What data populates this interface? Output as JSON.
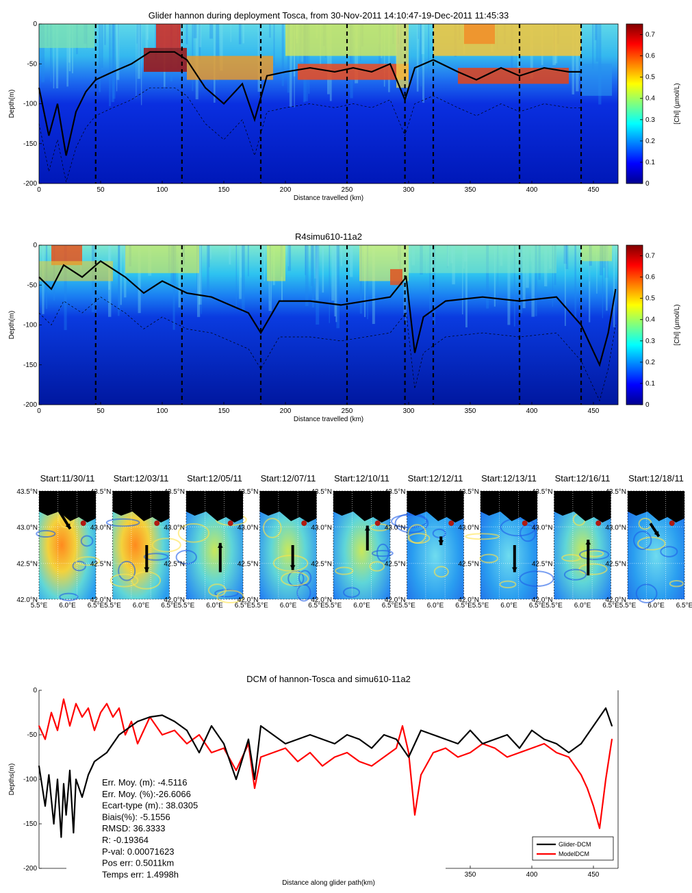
{
  "section_plot": {
    "type": "heatmap",
    "title": "Glider hannon during deployment Tosca, from 30-Nov-2011 14:10:47-19-Dec-2011 11:45:33",
    "xlabel": "Distance travelled (km)",
    "ylabel": "Depth(m)",
    "colorbar_label": "[Chl] (µmol/L)",
    "xlim": [
      0,
      470
    ],
    "ylim": [
      -200,
      0
    ],
    "x_ticks": [
      "0",
      "50",
      "100",
      "150",
      "200",
      "250",
      "300",
      "350",
      "400",
      "450"
    ],
    "y_ticks": [
      "0",
      "-50",
      "-100",
      "-150",
      "-200"
    ],
    "cb_ticks": [
      "0",
      "0.1",
      "0.2",
      "0.3",
      "0.4",
      "0.5",
      "0.6",
      "0.7"
    ]
  },
  "model_plot": {
    "type": "heatmap",
    "title": "R4simu610-11a2",
    "xlabel": "Distance travelled (km)",
    "ylabel": "Depth(m)",
    "colorbar_label": "[Chl] (µmol/L)",
    "x_ticks": [
      "0",
      "50",
      "100",
      "150",
      "200",
      "250",
      "300",
      "350",
      "400",
      "450"
    ],
    "y_ticks": [
      "0",
      "-50",
      "-100",
      "-150",
      "-200"
    ],
    "cb_ticks": [
      "0",
      "0.1",
      "0.2",
      "0.3",
      "0.4",
      "0.5",
      "0.6",
      "0.7"
    ]
  },
  "section_markers_km": [
    46,
    116,
    180,
    250,
    297,
    320,
    390,
    440
  ],
  "maps": {
    "titles": [
      "Start:11/30/11",
      "Start:12/03/11",
      "Start:12/05/11",
      "Start:12/07/11",
      "Start:12/10/11",
      "Start:12/12/11",
      "Start:12/13/11",
      "Start:12/16/11",
      "Start:12/18/11"
    ],
    "lat_ticks": [
      "43.5",
      "43.0",
      "42.5",
      "42.0"
    ],
    "lon_ticks": [
      "5.5",
      "6.0",
      "6.5"
    ],
    "lat_suffix": "N",
    "lon_suffix": "E"
  },
  "chart_data": {
    "type": "line",
    "title": "DCM of hannon-Tosca and simu610-11a2",
    "xlabel": "Distance along glider path(km)",
    "ylabel": "Depths(m)",
    "xlim": [
      0,
      470
    ],
    "ylim": [
      -200,
      0
    ],
    "x_ticks": [
      350,
      400,
      450
    ],
    "y_ticks": [
      0,
      -50,
      -100,
      -150,
      -200
    ],
    "series": [
      {
        "name": "Glider-DCM",
        "color": "#000000",
        "x": [
          0,
          5,
          8,
          12,
          15,
          18,
          20,
          22,
          25,
          28,
          30,
          35,
          40,
          45,
          50,
          55,
          60,
          65,
          70,
          75,
          80,
          90,
          100,
          110,
          120,
          130,
          140,
          150,
          160,
          170,
          175,
          180,
          190,
          200,
          210,
          220,
          230,
          240,
          250,
          260,
          270,
          280,
          290,
          300,
          310,
          320,
          330,
          340,
          350,
          360,
          370,
          380,
          390,
          400,
          410,
          420,
          430,
          440,
          450,
          460,
          465
        ],
        "y": [
          -85,
          -130,
          -95,
          -150,
          -100,
          -165,
          -105,
          -140,
          -90,
          -160,
          -100,
          -120,
          -95,
          -80,
          -75,
          -70,
          -60,
          -50,
          -45,
          -40,
          -35,
          -30,
          -28,
          -35,
          -45,
          -70,
          -40,
          -60,
          -100,
          -55,
          -100,
          -40,
          -50,
          -60,
          -55,
          -50,
          -55,
          -60,
          -50,
          -55,
          -65,
          -50,
          -55,
          -75,
          -45,
          -50,
          -55,
          -60,
          -45,
          -60,
          -55,
          -50,
          -65,
          -45,
          -55,
          -60,
          -70,
          -60,
          -40,
          -20,
          -40
        ]
      },
      {
        "name": "ModelDCM",
        "color": "#ff0000",
        "x": [
          0,
          5,
          10,
          15,
          20,
          25,
          30,
          35,
          40,
          45,
          50,
          55,
          60,
          65,
          70,
          75,
          80,
          90,
          100,
          110,
          120,
          130,
          140,
          150,
          160,
          170,
          175,
          180,
          190,
          200,
          210,
          220,
          230,
          240,
          250,
          260,
          270,
          280,
          290,
          295,
          300,
          305,
          310,
          320,
          330,
          340,
          350,
          360,
          370,
          380,
          390,
          400,
          410,
          420,
          430,
          440,
          445,
          450,
          455,
          460,
          465
        ],
        "y": [
          -40,
          -55,
          -25,
          -45,
          -10,
          -40,
          -15,
          -30,
          -20,
          -45,
          -25,
          -15,
          -30,
          -20,
          -50,
          -35,
          -60,
          -30,
          -50,
          -45,
          -60,
          -50,
          -70,
          -65,
          -90,
          -60,
          -110,
          -75,
          -70,
          -65,
          -80,
          -70,
          -85,
          -75,
          -70,
          -80,
          -85,
          -75,
          -65,
          -40,
          -70,
          -140,
          -95,
          -70,
          -65,
          -75,
          -70,
          -60,
          -65,
          -75,
          -70,
          -65,
          -60,
          -70,
          -75,
          -95,
          -110,
          -130,
          -155,
          -100,
          -55
        ]
      }
    ]
  },
  "stats": [
    "Err. Moy. (m): -4.5116",
    "Err. Moy. (%):-26.6066",
    "Ecart-type (m).: 38.0305",
    "Biais(%): -5.1556",
    "RMSD: 36.3333",
    "R: -0.19364",
    "P-val: 0.00071623",
    "Pos err: 0.5011km",
    "Temps err: 1.4998h"
  ]
}
